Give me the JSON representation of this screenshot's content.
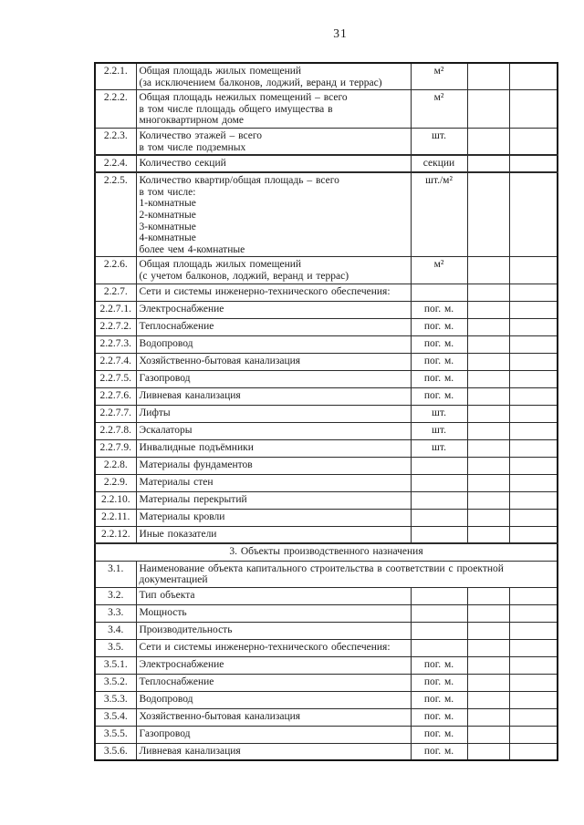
{
  "page": {
    "number": "31"
  },
  "table": {
    "columns": [
      "number",
      "indicator",
      "unit",
      "value-col-1",
      "value-col-2"
    ],
    "section3_title": "3. Объекты производственного назначения",
    "rows": [
      {
        "type": "normal",
        "num": "2.2.1.",
        "lines": [
          "Общая площадь жилых помещений",
          "(за исключением балконов, лоджий, веранд и террас)"
        ],
        "unit": "м²"
      },
      {
        "type": "normal",
        "num": "2.2.2.",
        "lines": [
          "Общая площадь нежилых помещений – всего",
          "в том числе площадь общего имущества в",
          "многоквартирном доме"
        ],
        "unit": "м²"
      },
      {
        "type": "normal",
        "num": "2.2.3.",
        "lines": [
          "Количество этажей – всего",
          "в том числе подземных"
        ],
        "unit": "шт."
      },
      {
        "type": "normal",
        "num": "2.2.4.",
        "lines": [
          "Количество секций"
        ],
        "unit": "секции"
      },
      {
        "type": "normal",
        "num": "2.2.5.",
        "lines": [
          "Количество квартир/общая площадь – всего",
          "в том числе:",
          "1-комнатные",
          "2-комнатные",
          "3-комнатные",
          "4-комнатные",
          "более чем 4-комнатные"
        ],
        "unit": "шт./м²"
      },
      {
        "type": "normal",
        "num": "2.2.6.",
        "lines": [
          "Общая площадь жилых помещений",
          "(с учетом балконов, лоджий, веранд и террас)"
        ],
        "unit": "м²"
      },
      {
        "type": "normal",
        "num": "2.2.7.",
        "lines": [
          "Сети и системы инженерно-технического обеспечения:"
        ],
        "unit": ""
      },
      {
        "type": "normal",
        "num": "2.2.7.1.",
        "lines": [
          "Электроснабжение"
        ],
        "unit": "пог. м."
      },
      {
        "type": "normal",
        "num": "2.2.7.2.",
        "lines": [
          "Теплоснабжение"
        ],
        "unit": "пог. м."
      },
      {
        "type": "normal",
        "num": "2.2.7.3.",
        "lines": [
          "Водопровод"
        ],
        "unit": "пог. м."
      },
      {
        "type": "normal",
        "num": "2.2.7.4.",
        "lines": [
          "Хозяйственно-бытовая канализация"
        ],
        "unit": "пог. м."
      },
      {
        "type": "normal",
        "num": "2.2.7.5.",
        "lines": [
          "Газопровод"
        ],
        "unit": "пог. м."
      },
      {
        "type": "normal",
        "num": "2.2.7.6.",
        "lines": [
          "Ливневая канализация"
        ],
        "unit": "пог. м."
      },
      {
        "type": "normal",
        "num": "2.2.7.7.",
        "lines": [
          "Лифты"
        ],
        "unit": "шт."
      },
      {
        "type": "normal",
        "num": "2.2.7.8.",
        "lines": [
          "Эскалаторы"
        ],
        "unit": "шт."
      },
      {
        "type": "normal",
        "num": "2.2.7.9.",
        "lines": [
          "Инвалидные подъёмники"
        ],
        "unit": "шт."
      },
      {
        "type": "normal",
        "num": "2.2.8.",
        "lines": [
          "Материалы фундаментов"
        ],
        "unit": ""
      },
      {
        "type": "normal",
        "num": "2.2.9.",
        "lines": [
          "Материалы стен"
        ],
        "unit": ""
      },
      {
        "type": "normal",
        "num": "2.2.10.",
        "lines": [
          "Материалы перекрытий"
        ],
        "unit": ""
      },
      {
        "type": "normal",
        "num": "2.2.11.",
        "lines": [
          "Материалы кровли"
        ],
        "unit": ""
      },
      {
        "type": "normal",
        "num": "2.2.12.",
        "lines": [
          "Иные показатели"
        ],
        "unit": ""
      },
      {
        "type": "section",
        "num": "",
        "lines": [
          "3. Объекты производственного назначения"
        ],
        "unit": ""
      },
      {
        "type": "wide",
        "num": "3.1.",
        "lines": [
          "Наименование объекта капитального строительства в соответствии с проектной",
          "документацией"
        ],
        "unit": ""
      },
      {
        "type": "normal",
        "num": "3.2.",
        "lines": [
          "Тип объекта"
        ],
        "unit": ""
      },
      {
        "type": "normal",
        "num": "3.3.",
        "lines": [
          "Мощность"
        ],
        "unit": ""
      },
      {
        "type": "normal",
        "num": "3.4.",
        "lines": [
          "Производительность"
        ],
        "unit": ""
      },
      {
        "type": "normal",
        "num": "3.5.",
        "lines": [
          "Сети и системы инженерно-технического обеспечения:"
        ],
        "unit": ""
      },
      {
        "type": "normal",
        "num": "3.5.1.",
        "lines": [
          "Электроснабжение"
        ],
        "unit": "пог. м."
      },
      {
        "type": "normal",
        "num": "3.5.2.",
        "lines": [
          "Теплоснабжение"
        ],
        "unit": "пог. м."
      },
      {
        "type": "normal",
        "num": "3.5.3.",
        "lines": [
          "Водопровод"
        ],
        "unit": "пог. м."
      },
      {
        "type": "normal",
        "num": "3.5.4.",
        "lines": [
          "Хозяйственно-бытовая канализация"
        ],
        "unit": "пог. м."
      },
      {
        "type": "normal",
        "num": "3.5.5.",
        "lines": [
          "Газопровод"
        ],
        "unit": "пог. м."
      },
      {
        "type": "normal",
        "num": "3.5.6.",
        "lines": [
          "Ливневая канализация"
        ],
        "unit": "пог. м."
      }
    ]
  }
}
